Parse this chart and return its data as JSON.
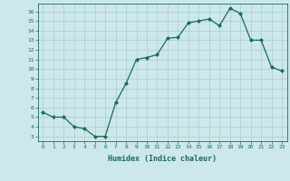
{
  "x": [
    0,
    1,
    2,
    3,
    4,
    5,
    6,
    7,
    8,
    9,
    10,
    11,
    12,
    13,
    14,
    15,
    16,
    17,
    18,
    19,
    20,
    21,
    22,
    23
  ],
  "y": [
    5.5,
    5.0,
    5.0,
    4.0,
    3.8,
    3.0,
    3.0,
    6.5,
    8.5,
    11.0,
    11.2,
    11.5,
    13.2,
    13.3,
    14.8,
    15.0,
    15.2,
    14.5,
    16.3,
    15.8,
    13.0,
    13.0,
    10.2,
    9.8
  ],
  "xlim": [
    -0.5,
    23.5
  ],
  "ylim": [
    2.5,
    16.8
  ],
  "xticks": [
    0,
    1,
    2,
    3,
    4,
    5,
    6,
    7,
    8,
    9,
    10,
    11,
    12,
    13,
    14,
    15,
    16,
    17,
    18,
    19,
    20,
    21,
    22,
    23
  ],
  "yticks": [
    3,
    4,
    5,
    6,
    7,
    8,
    9,
    10,
    11,
    12,
    13,
    14,
    15,
    16
  ],
  "xlabel": "Humidex (Indice chaleur)",
  "line_color": "#1a6b5a",
  "marker_color": "#1a6b5a",
  "bg_color": "#cce8ea",
  "grid_color": "#aaccce",
  "tick_color": "#1a6b5a",
  "label_color": "#1a6b5a"
}
